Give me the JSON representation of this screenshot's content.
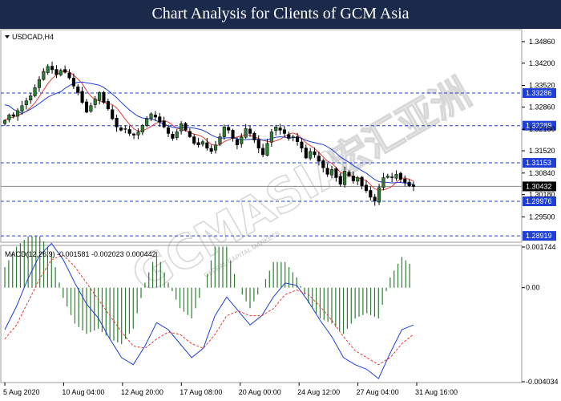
{
  "header": {
    "title": "Chart Analysis for Clients of GCM Asia"
  },
  "watermark": {
    "main": "GCMASIA",
    "cjk": "宏汇亚洲",
    "sub": "GLOBAL CAPITAL MARKETS"
  },
  "colors": {
    "header_bg": "#1b2a4a",
    "bull": "#2e7d32",
    "bear": "#000000",
    "ma_fast": "#e53935",
    "ma_slow": "#1e3fd8",
    "level": "#1e3fd8",
    "macd_hist": "#2e7d32",
    "macd_line": "#1e3fd8",
    "signal_line": "#e53935"
  },
  "chart_data": [
    {
      "type": "candlestick",
      "symbol_label": "USDCAD,H4",
      "ylim": [
        1.2875,
        1.352
      ],
      "y_ticks": [
        "1.34860",
        "1.34200",
        "1.33520",
        "1.32860",
        "1.32180",
        "1.31520",
        "1.30840",
        "1.30180",
        "1.29500"
      ],
      "x_ticks": [
        "5 Aug 2020",
        "10 Aug 04:00",
        "12 Aug 20:00",
        "17 Aug 08:00",
        "20 Aug 00:00",
        "24 Aug 12:00",
        "27 Aug 04:00",
        "31 Aug 16:00"
      ],
      "horizontal_levels": [
        "1.33286",
        "1.32289",
        "1.31153",
        "1.29976",
        "1.28919"
      ],
      "current_price": "1.30432",
      "close_series": [
        1.3245,
        1.3262,
        1.3258,
        1.3275,
        1.329,
        1.3305,
        1.332,
        1.3345,
        1.337,
        1.3395,
        1.341,
        1.34,
        1.3385,
        1.3398,
        1.3392,
        1.3375,
        1.335,
        1.333,
        1.33,
        1.327,
        1.329,
        1.331,
        1.333,
        1.33,
        1.328,
        1.325,
        1.3225,
        1.3215,
        1.322,
        1.3205,
        1.32,
        1.321,
        1.323,
        1.325,
        1.3265,
        1.3255,
        1.324,
        1.3225,
        1.3205,
        1.319,
        1.321,
        1.3235,
        1.3215,
        1.3195,
        1.3175,
        1.317,
        1.318,
        1.316,
        1.315,
        1.317,
        1.3195,
        1.3225,
        1.3215,
        1.319,
        1.317,
        1.3195,
        1.322,
        1.3205,
        1.3185,
        1.316,
        1.314,
        1.3175,
        1.321,
        1.3225,
        1.3215,
        1.3205,
        1.319,
        1.3195,
        1.318,
        1.316,
        1.313,
        1.315,
        1.314,
        1.312,
        1.31,
        1.308,
        1.3095,
        1.307,
        1.305,
        1.309,
        1.3075,
        1.306,
        1.307,
        1.3045,
        1.303,
        1.301,
        1.2998,
        1.304,
        1.307,
        1.3075,
        1.307,
        1.308,
        1.3065,
        1.3055,
        1.3045,
        1.3043
      ]
    },
    {
      "type": "line",
      "indicator_label": "MACD(12,26,9) -0.001581 -0.002023 0.000442",
      "y_ticks": [
        "0.001744",
        "0.00",
        "-0.004034"
      ],
      "ylim": [
        -0.004034,
        0.001744
      ],
      "series": [
        {
          "name": "MACD",
          "values": [
            -0.0018,
            -0.0008,
            0.0004,
            0.0014,
            0.0019,
            0.0012,
            0.0002,
            -0.0007,
            -0.0013,
            -0.0022,
            -0.003,
            -0.0033,
            -0.0025,
            -0.0015,
            -0.0018,
            -0.0024,
            -0.003,
            -0.0026,
            -0.0012,
            -0.0004,
            -0.001,
            -0.0016,
            -0.0012,
            -0.0004,
            0.0002,
            0.0001,
            -0.0006,
            -0.0014,
            -0.0021,
            -0.003,
            -0.0033,
            -0.0035,
            -0.0039,
            -0.0028,
            -0.0018,
            -0.0016
          ]
        },
        {
          "name": "Signal",
          "values": [
            -0.0022,
            -0.0016,
            -0.0006,
            0.0004,
            0.0012,
            0.0014,
            0.0009,
            0.0002,
            -0.0005,
            -0.0012,
            -0.0019,
            -0.0025,
            -0.0026,
            -0.0022,
            -0.0019,
            -0.002,
            -0.0024,
            -0.0026,
            -0.002,
            -0.0012,
            -0.001,
            -0.0012,
            -0.0012,
            -0.0009,
            -0.0003,
            -0.0001,
            -0.0003,
            -0.0008,
            -0.0014,
            -0.0021,
            -0.0027,
            -0.003,
            -0.0033,
            -0.003,
            -0.0024,
            -0.002
          ]
        }
      ]
    }
  ]
}
